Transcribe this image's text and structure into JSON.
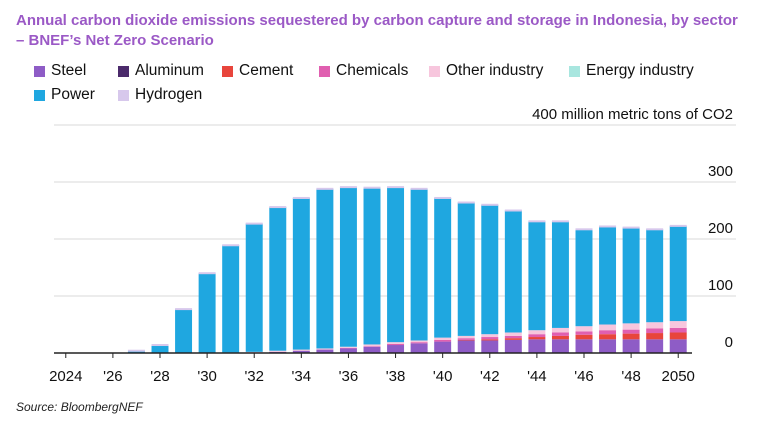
{
  "title": "Annual carbon dioxide emissions sequestered by carbon capture and storage in Indonesia, by sector – BNEF’s Net Zero Scenario",
  "source": "Source: BloombergNEF",
  "chart_data": {
    "type": "bar",
    "stacked": true,
    "unit_label": "400 million metric tons of CO2",
    "ylim": [
      0,
      400
    ],
    "y_ticks": [
      0,
      100,
      200,
      300
    ],
    "y_tick_labels": [
      "0",
      "100",
      "200",
      "300"
    ],
    "grid": true,
    "legend_position": "top",
    "categories": [
      "2024",
      "2025",
      "2026",
      "2027",
      "2028",
      "2029",
      "2030",
      "2031",
      "2032",
      "2033",
      "2034",
      "2035",
      "2036",
      "2037",
      "2038",
      "2039",
      "2040",
      "2041",
      "2042",
      "2043",
      "2044",
      "2045",
      "2046",
      "2047",
      "2048",
      "2049",
      "2050"
    ],
    "x_tick_labels": [
      "2024",
      "'26",
      "'28",
      "'30",
      "'32",
      "'34",
      "'36",
      "'38",
      "'40",
      "'42",
      "'44",
      "'46",
      "'48",
      "2050"
    ],
    "series": [
      {
        "name": "Steel",
        "color": "#8e5cc6",
        "values": [
          0,
          0,
          0,
          0,
          0,
          0,
          0,
          0,
          1,
          2,
          4,
          6,
          8,
          11,
          14,
          17,
          20,
          22,
          22,
          23,
          24,
          24,
          24,
          24,
          24,
          24,
          24
        ]
      },
      {
        "name": "Aluminum",
        "color": "#4b2a6b",
        "values": [
          0,
          0,
          0,
          0,
          0,
          0,
          0,
          0,
          0,
          0,
          0,
          0,
          0,
          0,
          0,
          0,
          0,
          0,
          0,
          0,
          0,
          0,
          0,
          0,
          0,
          0,
          0
        ]
      },
      {
        "name": "Cement",
        "color": "#e8453c",
        "values": [
          0,
          0,
          0,
          0,
          0,
          0,
          0,
          0,
          0,
          0,
          0,
          0,
          0,
          0,
          0,
          0,
          0,
          1,
          2,
          3,
          4,
          6,
          8,
          9,
          10,
          11,
          12
        ]
      },
      {
        "name": "Chemicals",
        "color": "#e05fb0",
        "values": [
          0,
          0,
          0,
          0,
          0,
          0,
          0,
          0,
          0,
          0,
          0,
          0,
          1,
          1,
          2,
          2,
          3,
          3,
          4,
          4,
          5,
          6,
          6,
          7,
          7,
          8,
          8
        ]
      },
      {
        "name": "Other industry",
        "color": "#f7c6dd",
        "values": [
          0,
          0,
          0,
          0,
          0,
          0,
          0,
          1,
          1,
          2,
          2,
          2,
          2,
          3,
          3,
          3,
          4,
          4,
          5,
          6,
          7,
          8,
          9,
          10,
          11,
          11,
          12
        ]
      },
      {
        "name": "Energy industry",
        "color": "#a8e6df",
        "values": [
          0,
          0,
          0,
          0,
          0,
          0,
          0,
          0,
          0,
          0,
          0,
          0,
          0,
          0,
          0,
          0,
          0,
          0,
          0,
          0,
          0,
          0,
          0,
          0,
          0,
          0,
          0
        ]
      },
      {
        "name": "Power",
        "color": "#1fa7e0",
        "values": [
          0,
          0,
          0,
          4,
          14,
          77,
          140,
          188,
          225,
          252,
          266,
          280,
          280,
          275,
          272,
          266,
          245,
          234,
          227,
          214,
          191,
          187,
          170,
          172,
          168,
          163,
          167
        ]
      },
      {
        "name": "Hydrogen",
        "color": "#d7c8ec",
        "values": [
          0,
          0,
          0,
          0,
          0,
          0,
          0,
          0,
          0,
          0,
          0,
          0,
          0,
          0,
          0,
          0,
          0,
          0,
          0,
          0,
          0,
          0,
          0,
          0,
          0,
          0,
          0
        ]
      }
    ]
  }
}
